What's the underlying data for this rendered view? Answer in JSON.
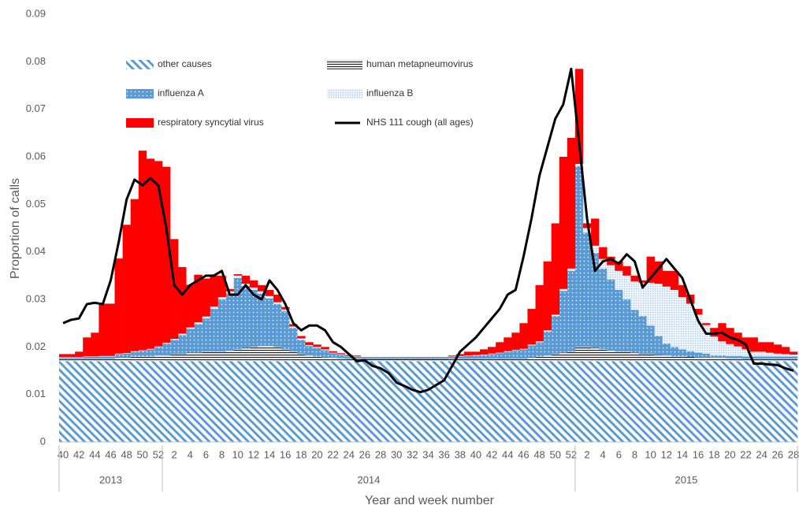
{
  "chart_data": {
    "type": "bar",
    "y_label": "Proportion  of calls",
    "x_label": "Year and  week number",
    "ylim": [
      0,
      0.09
    ],
    "yticks": [
      0,
      0.01,
      0.02,
      0.03,
      0.04,
      0.05,
      0.06,
      0.07,
      0.08,
      0.09
    ],
    "grid": false,
    "legend": "top-left",
    "categories": [
      "40",
      null,
      "42",
      null,
      "44",
      null,
      "46",
      null,
      "48",
      null,
      "50",
      null,
      "52",
      null,
      "2",
      null,
      "4",
      null,
      "6",
      null,
      "8",
      null,
      "10",
      null,
      "12",
      null,
      "14",
      null,
      "16",
      null,
      "18",
      null,
      "20",
      null,
      "22",
      null,
      "24",
      null,
      "26",
      null,
      "28",
      null,
      "30",
      null,
      "32",
      null,
      "34",
      null,
      "36",
      null,
      "38",
      null,
      "40",
      null,
      "42",
      null,
      "44",
      null,
      "46",
      null,
      "48",
      null,
      "50",
      null,
      "52",
      null,
      "2",
      null,
      "4",
      null,
      "6",
      null,
      "8",
      null,
      "10",
      null,
      "12",
      null,
      "14",
      null,
      "16",
      null,
      "18",
      null,
      "20",
      null,
      "22",
      null,
      "24",
      null,
      "26",
      null,
      "28"
    ],
    "groups": [
      {
        "label": "2013",
        "count": 13
      },
      {
        "label": "2014",
        "count": 52
      },
      {
        "label": "2015",
        "count": 28
      }
    ],
    "series": [
      {
        "name": "other causes",
        "type": "bar",
        "color": "#5b9bd5",
        "pattern": "diagonal",
        "values": [
          0.017,
          0.017,
          0.017,
          0.017,
          0.017,
          0.017,
          0.017,
          0.017,
          0.017,
          0.017,
          0.017,
          0.017,
          0.017,
          0.017,
          0.017,
          0.017,
          0.017,
          0.017,
          0.017,
          0.017,
          0.017,
          0.017,
          0.017,
          0.017,
          0.017,
          0.017,
          0.017,
          0.017,
          0.017,
          0.017,
          0.017,
          0.017,
          0.017,
          0.017,
          0.017,
          0.017,
          0.017,
          0.017,
          0.017,
          0.017,
          0.017,
          0.017,
          0.017,
          0.017,
          0.017,
          0.017,
          0.017,
          0.017,
          0.017,
          0.017,
          0.017,
          0.017,
          0.017,
          0.017,
          0.017,
          0.017,
          0.017,
          0.017,
          0.017,
          0.017,
          0.017,
          0.017,
          0.017,
          0.017,
          0.017,
          0.017,
          0.017,
          0.017,
          0.017,
          0.017,
          0.017,
          0.017,
          0.017,
          0.017,
          0.017,
          0.017,
          0.017,
          0.017,
          0.017,
          0.017,
          0.017,
          0.017,
          0.017,
          0.017,
          0.017,
          0.017,
          0.017,
          0.017,
          0.017,
          0.017,
          0.017,
          0.017,
          0.017
        ]
      },
      {
        "name": "human metapneumovirus",
        "type": "bar",
        "color": "#222222",
        "pattern": "horizontal",
        "values": [
          0.0005,
          0.0005,
          0.0005,
          0.0005,
          0.0005,
          0.0005,
          0.0005,
          0.0008,
          0.0008,
          0.001,
          0.001,
          0.001,
          0.0012,
          0.0012,
          0.0015,
          0.0015,
          0.0018,
          0.0018,
          0.002,
          0.002,
          0.002,
          0.0022,
          0.0025,
          0.0028,
          0.003,
          0.0032,
          0.0032,
          0.003,
          0.0025,
          0.002,
          0.0015,
          0.0012,
          0.001,
          0.0008,
          0.0007,
          0.0006,
          0.0005,
          0.0005,
          0.0004,
          0.0004,
          0.0004,
          0.0004,
          0.0004,
          0.0004,
          0.0004,
          0.0004,
          0.0004,
          0.0004,
          0.0004,
          0.0005,
          0.0005,
          0.0005,
          0.0005,
          0.0005,
          0.0005,
          0.0005,
          0.0005,
          0.0005,
          0.0005,
          0.0008,
          0.001,
          0.0012,
          0.0015,
          0.0018,
          0.002,
          0.003,
          0.003,
          0.0028,
          0.0025,
          0.0022,
          0.002,
          0.002,
          0.0018,
          0.0015,
          0.0015,
          0.0013,
          0.0012,
          0.001,
          0.001,
          0.0009,
          0.0008,
          0.0008,
          0.0007,
          0.0007,
          0.0006,
          0.0006,
          0.0005,
          0.0005,
          0.0005,
          0.0005,
          0.0005,
          0.0005,
          0.0005
        ]
      },
      {
        "name": "influenza A",
        "type": "bar",
        "color": "#5b9bd5",
        "pattern": "dots",
        "values": [
          0.0003,
          0.0003,
          0.0003,
          0.0004,
          0.0004,
          0.0005,
          0.0005,
          0.0007,
          0.0008,
          0.001,
          0.0012,
          0.0015,
          0.0018,
          0.0025,
          0.003,
          0.004,
          0.005,
          0.006,
          0.007,
          0.009,
          0.011,
          0.012,
          0.015,
          0.013,
          0.012,
          0.011,
          0.01,
          0.009,
          0.008,
          0.005,
          0.003,
          0.002,
          0.0018,
          0.0015,
          0.001,
          0.0008,
          0.0005,
          0.0004,
          0.0003,
          0.0003,
          0.0003,
          0.0003,
          0.0003,
          0.0003,
          0.0003,
          0.0003,
          0.0003,
          0.0003,
          0.0003,
          0.0004,
          0.0005,
          0.0006,
          0.0007,
          0.0008,
          0.001,
          0.0012,
          0.0015,
          0.0018,
          0.002,
          0.0025,
          0.003,
          0.005,
          0.008,
          0.013,
          0.017,
          0.038,
          0.024,
          0.02,
          0.017,
          0.015,
          0.013,
          0.011,
          0.009,
          0.008,
          0.006,
          0.004,
          0.0025,
          0.002,
          0.0015,
          0.0012,
          0.001,
          0.0008,
          0.0005,
          0.0005,
          0.0005,
          0.0005,
          0.0005,
          0.0005,
          0.0005,
          0.0005,
          0.0005,
          0.0005,
          0.0005
        ]
      },
      {
        "name": "influenza B",
        "type": "bar",
        "color": "#9dc3e6",
        "pattern": "fine-dots",
        "values": [
          0.0001,
          0.0001,
          0.0001,
          0.0001,
          0.0001,
          0.0001,
          0.0001,
          0.0001,
          0.0001,
          0.0001,
          0.0001,
          0.0001,
          0.0001,
          0.0002,
          0.0002,
          0.0003,
          0.0003,
          0.0004,
          0.0004,
          0.0005,
          0.0005,
          0.0005,
          0.0005,
          0.0005,
          0.0005,
          0.0005,
          0.0005,
          0.0004,
          0.0004,
          0.0003,
          0.0003,
          0.0002,
          0.0002,
          0.0002,
          0.0001,
          0.0001,
          0.0001,
          0.0001,
          0.0001,
          0.0001,
          0.0001,
          0.0001,
          0.0001,
          0.0001,
          0.0001,
          0.0001,
          0.0001,
          0.0001,
          0.0001,
          0.0001,
          0.0001,
          0.0001,
          0.0001,
          0.0001,
          0.0001,
          0.0001,
          0.0001,
          0.0001,
          0.0001,
          0.0002,
          0.0002,
          0.0003,
          0.0003,
          0.0004,
          0.0005,
          0.0005,
          0.001,
          0.0015,
          0.002,
          0.003,
          0.004,
          0.005,
          0.006,
          0.007,
          0.009,
          0.011,
          0.012,
          0.012,
          0.011,
          0.01,
          0.008,
          0.006,
          0.004,
          0.003,
          0.0025,
          0.002,
          0.0015,
          0.001,
          0.001,
          0.0008,
          0.0006,
          0.0005,
          0.0004
        ]
      },
      {
        "name": "respiratory syncytial virus",
        "type": "bar",
        "color": "#ff0000",
        "pattern": "solid",
        "values": [
          0.0006,
          0.0006,
          0.0011,
          0.004,
          0.005,
          0.011,
          0.011,
          0.02,
          0.027,
          0.032,
          0.042,
          0.04,
          0.039,
          0.037,
          0.021,
          0.014,
          0.009,
          0.01,
          0.008,
          0.0065,
          0.0045,
          0.0005,
          0.0003,
          0.0017,
          0.0015,
          0.0013,
          0.0013,
          0.0016,
          0.0005,
          0.0005,
          0.0005,
          0.0006,
          0.0005,
          0.0005,
          0.0003,
          0.0002,
          0.0002,
          0.0002,
          0.0001,
          0.0001,
          0.0001,
          0.0001,
          0.0001,
          0.0001,
          0.0001,
          0.0001,
          0.0001,
          0.0001,
          0.0001,
          0.0002,
          0.0004,
          0.0008,
          0.0007,
          0.0011,
          0.0014,
          0.0022,
          0.0029,
          0.0036,
          0.0054,
          0.0075,
          0.0118,
          0.0145,
          0.0192,
          0.0278,
          0.0275,
          0.02,
          0.001,
          0.0057,
          0.0025,
          0.0018,
          0.002,
          0.002,
          0.0012,
          0.0005,
          0.0055,
          0.0047,
          0.0033,
          0.004,
          0.0025,
          0.0019,
          0.0012,
          0.0004,
          0.0018,
          0.0038,
          0.0034,
          0.0029,
          0.0025,
          0.003,
          0.002,
          0.0022,
          0.0019,
          0.0015,
          0.0006
        ]
      },
      {
        "name": "NHS 111 cough (all ages)",
        "type": "line",
        "color": "#000000",
        "values": [
          0.025,
          0.0257,
          0.026,
          0.029,
          0.0293,
          0.029,
          0.034,
          0.042,
          0.051,
          0.0552,
          0.054,
          0.0555,
          0.054,
          0.045,
          0.033,
          0.031,
          0.033,
          0.034,
          0.035,
          0.035,
          0.036,
          0.031,
          0.031,
          0.033,
          0.031,
          0.03,
          0.034,
          0.032,
          0.029,
          0.025,
          0.0235,
          0.0245,
          0.0245,
          0.0235,
          0.021,
          0.02,
          0.0185,
          0.017,
          0.0172,
          0.016,
          0.0155,
          0.0145,
          0.0125,
          0.0118,
          0.011,
          0.0105,
          0.011,
          0.012,
          0.013,
          0.016,
          0.019,
          0.0205,
          0.022,
          0.024,
          0.026,
          0.028,
          0.031,
          0.032,
          0.039,
          0.047,
          0.056,
          0.062,
          0.068,
          0.071,
          0.0785,
          0.063,
          0.047,
          0.036,
          0.038,
          0.0385,
          0.0375,
          0.0395,
          0.038,
          0.0325,
          0.0345,
          0.0365,
          0.0385,
          0.0365,
          0.0345,
          0.03,
          0.0255,
          0.0228,
          0.0228,
          0.023,
          0.022,
          0.0215,
          0.0205,
          0.0165,
          0.0165,
          0.0163,
          0.0162,
          0.0155,
          0.015
        ]
      }
    ]
  }
}
